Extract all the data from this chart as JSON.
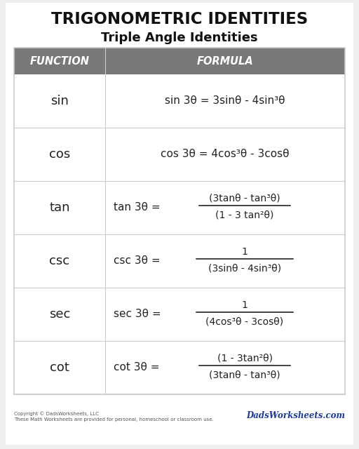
{
  "title": "TRIGONOMETRIC IDENTITIES",
  "subtitle": "Triple Angle Identities",
  "header_bg": "#787878",
  "header_text_color": "#ffffff",
  "header_function": "FUNCTION",
  "header_formula": "FORMULA",
  "border_color": "#cccccc",
  "functions": [
    "sin",
    "cos",
    "tan",
    "csc",
    "sec",
    "cot"
  ],
  "formulas_line1": [
    "sin 3θ = 3sinθ - 4sin³θ",
    "cos 3θ = 4cos³θ - 3cosθ",
    "(3tanθ - tan³θ)",
    "1",
    "1",
    "(1 - 3tan²θ)"
  ],
  "formulas_line2": [
    "",
    "",
    "(1 - 3 tan²θ)",
    "(3sinθ - 4sin³θ)",
    "(4cos³θ - 3cosθ)",
    "(3tanθ - tan³θ)"
  ],
  "formula_prefix": [
    "",
    "",
    "tan 3θ = ",
    "csc 3θ = ",
    "sec 3θ = ",
    "cot 3θ = "
  ],
  "has_fraction": [
    false,
    false,
    true,
    true,
    true,
    true
  ],
  "footer_copyright": "Copyright © DadsWorksheets, LLC\nThese Math Worksheets are provided for personal, homeschool or classroom use.",
  "footer_brand": "DadsWorksheets.com",
  "outer_bg": "#ffffff",
  "page_bg": "#eeeeee"
}
